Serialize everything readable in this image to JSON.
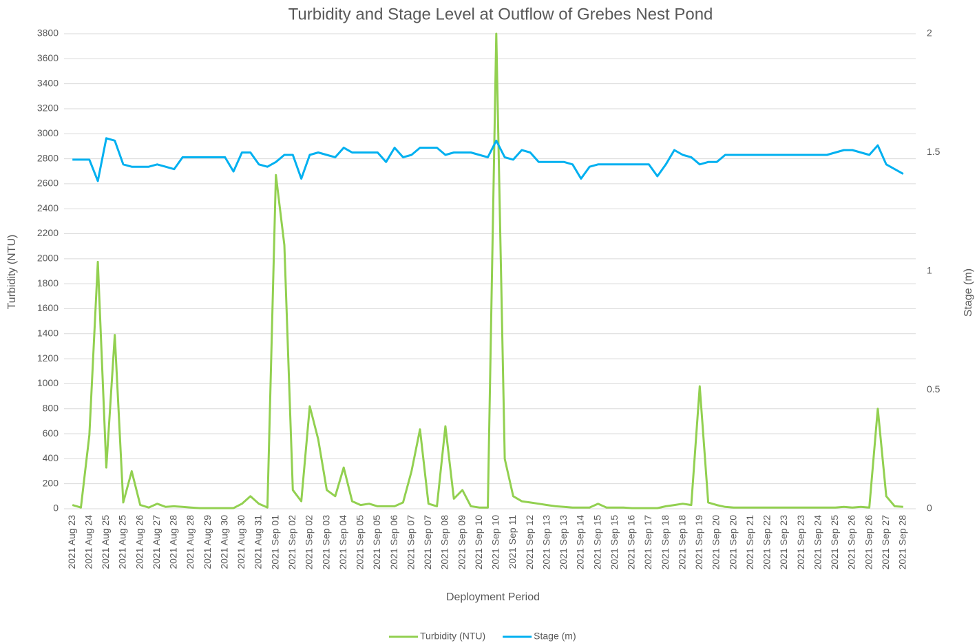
{
  "chart_data": {
    "type": "line",
    "title": "Turbidity and Stage Level at Outflow of Grebes Nest Pond",
    "x_label": "Deployment Period",
    "y_label": "Turbidity (NTU)",
    "y2_label": "Stage (m)",
    "categories": [
      "2021 Aug 23",
      null,
      "2021 Aug 24",
      null,
      "2021 Aug 25",
      null,
      "2021 Aug 25",
      null,
      "2021 Aug 26",
      null,
      "2021 Aug 27",
      null,
      "2021 Aug 28",
      null,
      "2021 Aug 28",
      null,
      "2021 Aug 29",
      null,
      "2021 Aug 30",
      null,
      "2021 Aug 30",
      null,
      "2021 Aug 31",
      null,
      "2021 Sep 01",
      null,
      "2021 Sep 02",
      null,
      "2021 Sep 02",
      null,
      "2021 Sep 03",
      null,
      "2021 Sep 04",
      null,
      "2021 Sep 05",
      null,
      "2021 Sep 05",
      null,
      "2021 Sep 06",
      null,
      "2021 Sep 07",
      null,
      "2021 Sep 07",
      null,
      "2021 Sep 08",
      null,
      "2021 Sep 09",
      null,
      "2021 Sep 10",
      null,
      "2021 Sep 10",
      null,
      "2021 Sep 11",
      null,
      "2021 Sep 12",
      null,
      "2021 Sep 13",
      null,
      "2021 Sep 13",
      null,
      "2021 Sep 14",
      null,
      "2021 Sep 15",
      null,
      "2021 Sep 15",
      null,
      "2021 Sep 16",
      null,
      "2021 Sep 17",
      null,
      "2021 Sep 18",
      null,
      "2021 Sep 18",
      null,
      "2021 Sep 19",
      null,
      "2021 Sep 20",
      null,
      "2021 Sep 20",
      null,
      "2021 Sep 21",
      null,
      "2021 Sep 22",
      null,
      "2021 Sep 23",
      null,
      "2021 Sep 23",
      null,
      "2021 Sep 24",
      null,
      "2021 Sep 25",
      null,
      "2021 Sep 26",
      null,
      "2021 Sep 26",
      null,
      "2021 Sep 27",
      null,
      "2021 Sep 28"
    ],
    "series": [
      {
        "name": "Turbidity (NTU)",
        "color": "#92d050",
        "values": [
          30,
          10,
          590,
          1975,
          330,
          1390,
          50,
          300,
          30,
          10,
          40,
          15,
          20,
          15,
          10,
          5,
          5,
          5,
          5,
          5,
          40,
          100,
          40,
          10,
          2670,
          2110,
          150,
          60,
          820,
          555,
          150,
          100,
          330,
          60,
          30,
          40,
          20,
          20,
          20,
          50,
          300,
          635,
          40,
          20,
          660,
          80,
          150,
          20,
          10,
          10,
          3800,
          400,
          100,
          60,
          50,
          40,
          30,
          20,
          15,
          10,
          10,
          10,
          40,
          10,
          10,
          10,
          5,
          5,
          5,
          5,
          20,
          30,
          40,
          30,
          980,
          50,
          30,
          15,
          10,
          10,
          10,
          10,
          10,
          10,
          10,
          10,
          10,
          10,
          10,
          10,
          10,
          15,
          10,
          15,
          10,
          800,
          100,
          20,
          15
        ]
      },
      {
        "name": "Stage (m)",
        "color": "#00b0f0",
        "axis": "y2",
        "values": [
          1.47,
          1.47,
          1.47,
          1.38,
          1.56,
          1.55,
          1.45,
          1.44,
          1.44,
          1.44,
          1.45,
          1.44,
          1.43,
          1.48,
          1.48,
          1.48,
          1.48,
          1.48,
          1.48,
          1.42,
          1.5,
          1.5,
          1.45,
          1.44,
          1.46,
          1.49,
          1.49,
          1.39,
          1.49,
          1.5,
          1.49,
          1.48,
          1.52,
          1.5,
          1.5,
          1.5,
          1.5,
          1.46,
          1.52,
          1.48,
          1.49,
          1.52,
          1.52,
          1.52,
          1.49,
          1.5,
          1.5,
          1.5,
          1.49,
          1.48,
          1.55,
          1.48,
          1.47,
          1.51,
          1.5,
          1.46,
          1.46,
          1.46,
          1.46,
          1.45,
          1.39,
          1.44,
          1.45,
          1.45,
          1.45,
          1.45,
          1.45,
          1.45,
          1.45,
          1.4,
          1.45,
          1.51,
          1.49,
          1.48,
          1.45,
          1.46,
          1.46,
          1.49,
          1.49,
          1.49,
          1.49,
          1.49,
          1.49,
          1.49,
          1.49,
          1.49,
          1.49,
          1.49,
          1.49,
          1.49,
          1.5,
          1.51,
          1.51,
          1.5,
          1.49,
          1.53,
          1.45,
          1.43,
          1.41
        ]
      }
    ],
    "ylim": [
      0,
      3800
    ],
    "yticks": [
      0,
      200,
      400,
      600,
      800,
      1000,
      1200,
      1400,
      1600,
      1800,
      2000,
      2200,
      2400,
      2600,
      2800,
      3000,
      3200,
      3400,
      3600,
      3800
    ],
    "y2lim": [
      0,
      2
    ],
    "y2ticks": [
      0,
      0.5,
      1,
      1.5,
      2
    ],
    "grid": true,
    "legend": "bottom"
  }
}
